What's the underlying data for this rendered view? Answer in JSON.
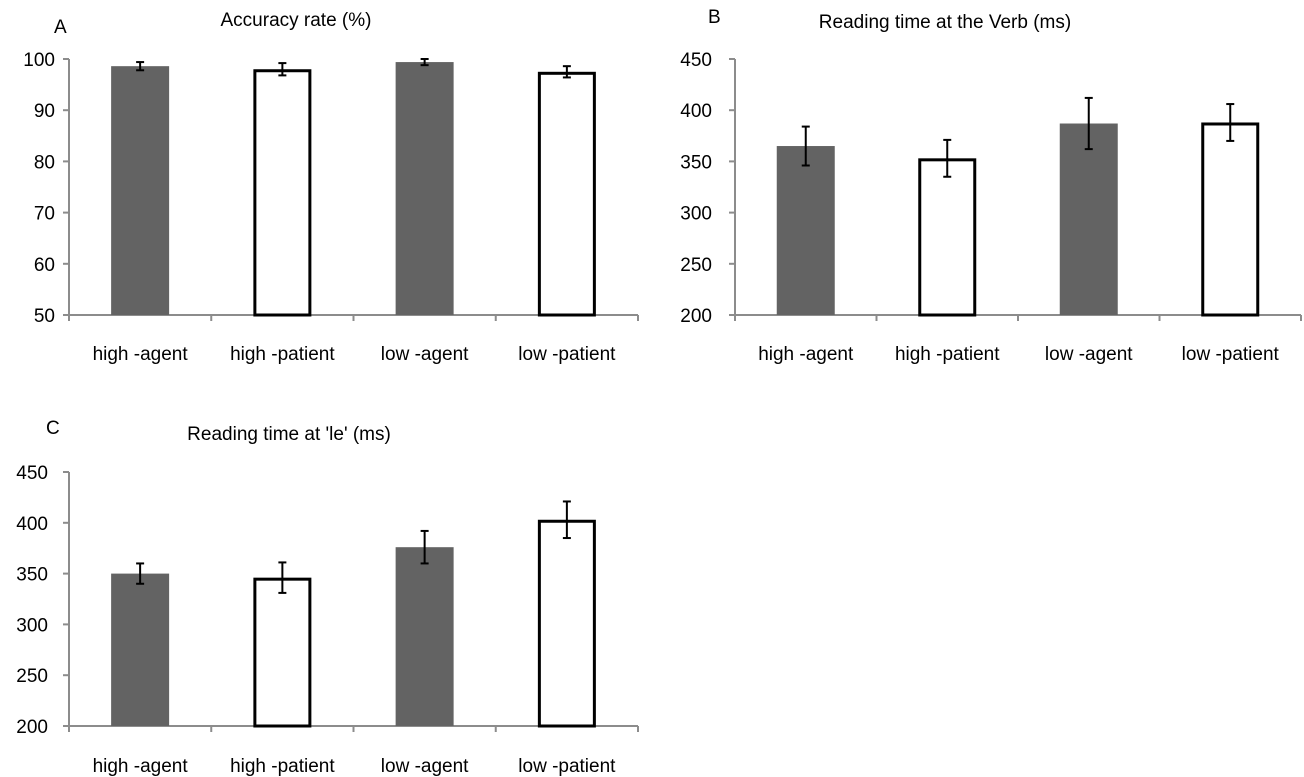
{
  "colors": {
    "filled_bar": "#636363",
    "open_bar_fill": "#ffffff",
    "bar_outline": "#000000",
    "axis": "#8c8c8c"
  },
  "chart_data": [
    {
      "panel": "A",
      "type": "bar",
      "title": "Accuracy rate (%)",
      "categories": [
        "high -agent",
        "high -patient",
        "low -agent",
        "low -patient"
      ],
      "values": [
        98.6,
        98.0,
        99.4,
        97.5
      ],
      "error": [
        0.8,
        1.2,
        0.6,
        1.1
      ],
      "bar_style": [
        "filled",
        "open",
        "filled",
        "open"
      ],
      "yticks": [
        50,
        60,
        70,
        80,
        90,
        100
      ],
      "ylim": [
        50,
        100
      ],
      "grid": false,
      "legend": "none"
    },
    {
      "panel": "B",
      "type": "bar",
      "title": "Reading time at the Verb (ms)",
      "categories": [
        "high -agent",
        "high -patient",
        "low -agent",
        "low -patient"
      ],
      "values": [
        365,
        353,
        387,
        388
      ],
      "error": [
        19,
        18,
        25,
        18
      ],
      "bar_style": [
        "filled",
        "open",
        "filled",
        "open"
      ],
      "yticks": [
        200,
        250,
        300,
        350,
        400,
        450
      ],
      "ylim": [
        200,
        450
      ],
      "grid": false,
      "legend": "none"
    },
    {
      "panel": "C",
      "type": "bar",
      "title": "Reading time at 'le' (ms)",
      "categories": [
        "high -agent",
        "high -patient",
        "low -agent",
        "low -patient"
      ],
      "values": [
        350,
        346,
        376,
        403
      ],
      "error": [
        10,
        15,
        16,
        18
      ],
      "bar_style": [
        "filled",
        "open",
        "filled",
        "open"
      ],
      "yticks": [
        200,
        250,
        300,
        350,
        400,
        450
      ],
      "ylim": [
        200,
        450
      ],
      "grid": false,
      "legend": "none"
    }
  ]
}
